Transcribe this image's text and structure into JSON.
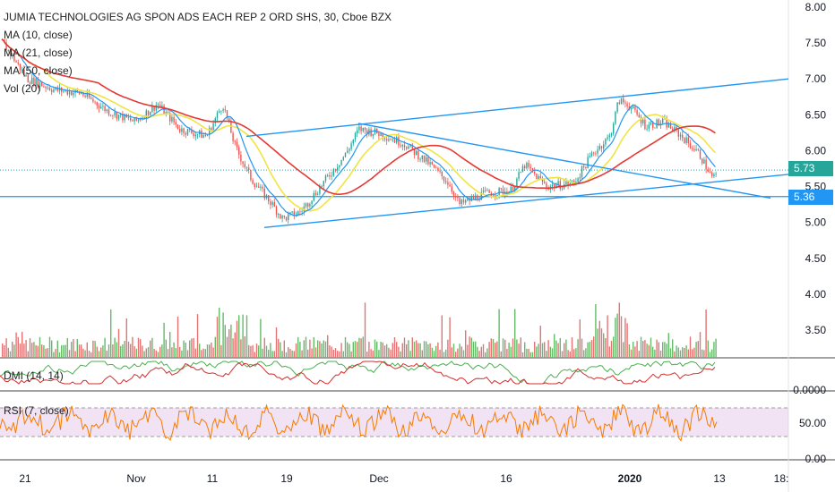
{
  "header": {
    "title": "JUMIA TECHNOLOGIES AG SPON ADS EACH REP 2 ORD SHS, 30, Cboe BZX"
  },
  "legend": {
    "ma10": "MA (10, close)",
    "ma21": "MA (21, close)",
    "ma50": "MA (50, close)",
    "vol": "Vol (20)",
    "dmi": "DMI (14, 14)",
    "rsi": "RSI (7, close)"
  },
  "price_tags": {
    "last": "5.73",
    "level": "5.36"
  },
  "colors": {
    "axis_text": "#131722",
    "trendline": "#2196f3",
    "ma10": "#2196f3",
    "ma21": "#f0e442",
    "ma50": "#e53935",
    "up": "#26a69a",
    "down": "#ef5350",
    "vol_up": "#66bb6a",
    "vol_down": "#e57373",
    "dmi_plus": "#4caf50",
    "dmi_minus": "#d32f2f",
    "rsi": "#f57c00",
    "rsi_band": "#e1bee7",
    "last_tag": "#26a69a",
    "level_tag": "#2196f3"
  },
  "chart_data": {
    "type": "candlestick",
    "x_ticks": [
      "21",
      "Nov",
      "11",
      "19",
      "Dec",
      "16",
      "2020",
      "13",
      "18:"
    ],
    "y_ticks": [
      "8.00",
      "7.50",
      "7.00",
      "6.50",
      "6.00",
      "5.50",
      "5.00",
      "4.50",
      "4.00",
      "3.50"
    ],
    "ylim": [
      3.2,
      8.05
    ],
    "rsi_ticks": [
      "50.00",
      "0.00"
    ],
    "dmi_ticks": [
      "0.0000"
    ],
    "price_anchors": [
      {
        "x": 0,
        "y": 7.55
      },
      {
        "x": 30,
        "y": 7.0
      },
      {
        "x": 60,
        "y": 6.85
      },
      {
        "x": 90,
        "y": 6.8
      },
      {
        "x": 120,
        "y": 6.55
      },
      {
        "x": 150,
        "y": 6.4
      },
      {
        "x": 175,
        "y": 6.65
      },
      {
        "x": 200,
        "y": 6.3
      },
      {
        "x": 230,
        "y": 6.2
      },
      {
        "x": 248,
        "y": 6.65
      },
      {
        "x": 262,
        "y": 6.05
      },
      {
        "x": 280,
        "y": 5.6
      },
      {
        "x": 300,
        "y": 5.3
      },
      {
        "x": 315,
        "y": 5.05
      },
      {
        "x": 335,
        "y": 5.15
      },
      {
        "x": 360,
        "y": 5.55
      },
      {
        "x": 385,
        "y": 5.95
      },
      {
        "x": 400,
        "y": 6.3
      },
      {
        "x": 420,
        "y": 6.25
      },
      {
        "x": 450,
        "y": 6.1
      },
      {
        "x": 480,
        "y": 5.8
      },
      {
        "x": 500,
        "y": 5.55
      },
      {
        "x": 512,
        "y": 5.25
      },
      {
        "x": 540,
        "y": 5.4
      },
      {
        "x": 570,
        "y": 5.45
      },
      {
        "x": 585,
        "y": 5.8
      },
      {
        "x": 610,
        "y": 5.5
      },
      {
        "x": 640,
        "y": 5.55
      },
      {
        "x": 660,
        "y": 5.95
      },
      {
        "x": 680,
        "y": 6.2
      },
      {
        "x": 690,
        "y": 6.7
      },
      {
        "x": 700,
        "y": 6.65
      },
      {
        "x": 720,
        "y": 6.35
      },
      {
        "x": 740,
        "y": 6.4
      },
      {
        "x": 760,
        "y": 6.2
      },
      {
        "x": 780,
        "y": 5.95
      },
      {
        "x": 795,
        "y": 5.6
      },
      {
        "x": 800,
        "y": 5.73
      }
    ],
    "trendlines": [
      {
        "name": "upper-channel",
        "p1": {
          "x": 275,
          "y": 6.2
        },
        "p2": {
          "x": 880,
          "y": 7.0
        }
      },
      {
        "name": "lower-channel",
        "p1": {
          "x": 295,
          "y": 4.93
        },
        "p2": {
          "x": 880,
          "y": 5.67
        }
      },
      {
        "name": "descending-line",
        "p1": {
          "x": 400,
          "y": 6.38
        },
        "p2": {
          "x": 860,
          "y": 5.34
        }
      },
      {
        "name": "horizontal-level",
        "p1": {
          "x": 0,
          "y": 5.36
        },
        "p2": {
          "x": 880,
          "y": 5.36
        }
      }
    ],
    "last_price": 5.73,
    "level_price": 5.36
  }
}
